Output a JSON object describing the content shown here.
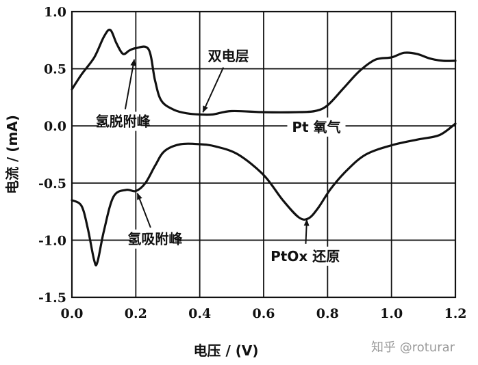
{
  "chart_data": {
    "type": "line",
    "xlabel": "电压 / (V)",
    "ylabel": "电流 / (mA)",
    "xlim": [
      0.0,
      1.2
    ],
    "ylim": [
      -1.5,
      1.0
    ],
    "grid": true,
    "x_ticks": [
      "0.0",
      "0.2",
      "0.4",
      "0.6",
      "0.8",
      "1.0",
      "1.2"
    ],
    "y_ticks": [
      "1.0",
      "0.5",
      "0.0",
      "-0.5",
      "-1.0",
      "-1.5"
    ],
    "series": [
      {
        "segment": "anodic",
        "points": [
          [
            0.0,
            0.32
          ],
          [
            0.03,
            0.45
          ],
          [
            0.07,
            0.6
          ],
          [
            0.1,
            0.78
          ],
          [
            0.12,
            0.84
          ],
          [
            0.14,
            0.72
          ],
          [
            0.16,
            0.63
          ],
          [
            0.18,
            0.66
          ],
          [
            0.2,
            0.68
          ],
          [
            0.24,
            0.67
          ],
          [
            0.26,
            0.4
          ],
          [
            0.28,
            0.22
          ],
          [
            0.32,
            0.14
          ],
          [
            0.36,
            0.11
          ],
          [
            0.4,
            0.1
          ],
          [
            0.44,
            0.1
          ],
          [
            0.5,
            0.13
          ],
          [
            0.6,
            0.12
          ],
          [
            0.7,
            0.12
          ],
          [
            0.76,
            0.13
          ],
          [
            0.8,
            0.18
          ],
          [
            0.85,
            0.33
          ],
          [
            0.9,
            0.48
          ],
          [
            0.95,
            0.58
          ],
          [
            1.0,
            0.6
          ],
          [
            1.04,
            0.64
          ],
          [
            1.08,
            0.63
          ],
          [
            1.12,
            0.59
          ],
          [
            1.16,
            0.57
          ],
          [
            1.2,
            0.57
          ]
        ]
      },
      {
        "segment": "cathodic",
        "points": [
          [
            1.2,
            0.02
          ],
          [
            1.15,
            -0.08
          ],
          [
            1.08,
            -0.12
          ],
          [
            1.0,
            -0.17
          ],
          [
            0.92,
            -0.25
          ],
          [
            0.86,
            -0.39
          ],
          [
            0.81,
            -0.55
          ],
          [
            0.77,
            -0.72
          ],
          [
            0.74,
            -0.81
          ],
          [
            0.71,
            -0.8
          ],
          [
            0.66,
            -0.65
          ],
          [
            0.6,
            -0.43
          ],
          [
            0.52,
            -0.25
          ],
          [
            0.45,
            -0.18
          ],
          [
            0.4,
            -0.16
          ],
          [
            0.34,
            -0.16
          ],
          [
            0.29,
            -0.22
          ],
          [
            0.26,
            -0.35
          ],
          [
            0.23,
            -0.5
          ],
          [
            0.2,
            -0.57
          ],
          [
            0.17,
            -0.56
          ],
          [
            0.13,
            -0.62
          ],
          [
            0.1,
            -0.92
          ],
          [
            0.08,
            -1.19
          ],
          [
            0.07,
            -1.18
          ],
          [
            0.05,
            -0.9
          ],
          [
            0.03,
            -0.7
          ],
          [
            0.0,
            -0.65
          ]
        ]
      }
    ],
    "annotations": [
      {
        "text": "双电层",
        "label_at": [
          0.49,
          0.61
        ],
        "arrow_to": [
          0.41,
          0.12
        ]
      },
      {
        "text": "氢脱附峰",
        "label_at": [
          0.16,
          0.04
        ],
        "arrow_to": [
          0.195,
          0.58
        ]
      },
      {
        "text": "Pt 氧气",
        "label_at": [
          0.765,
          -0.01
        ],
        "arrow_to": null
      },
      {
        "text": "氢吸附峰",
        "label_at": [
          0.26,
          -0.99
        ],
        "arrow_to": [
          0.205,
          -0.59
        ]
      },
      {
        "text": "PtOx 还原",
        "label_at": [
          0.73,
          -1.14
        ],
        "arrow_to": [
          0.735,
          -0.82
        ]
      }
    ]
  },
  "watermark": "知乎 @roturar"
}
